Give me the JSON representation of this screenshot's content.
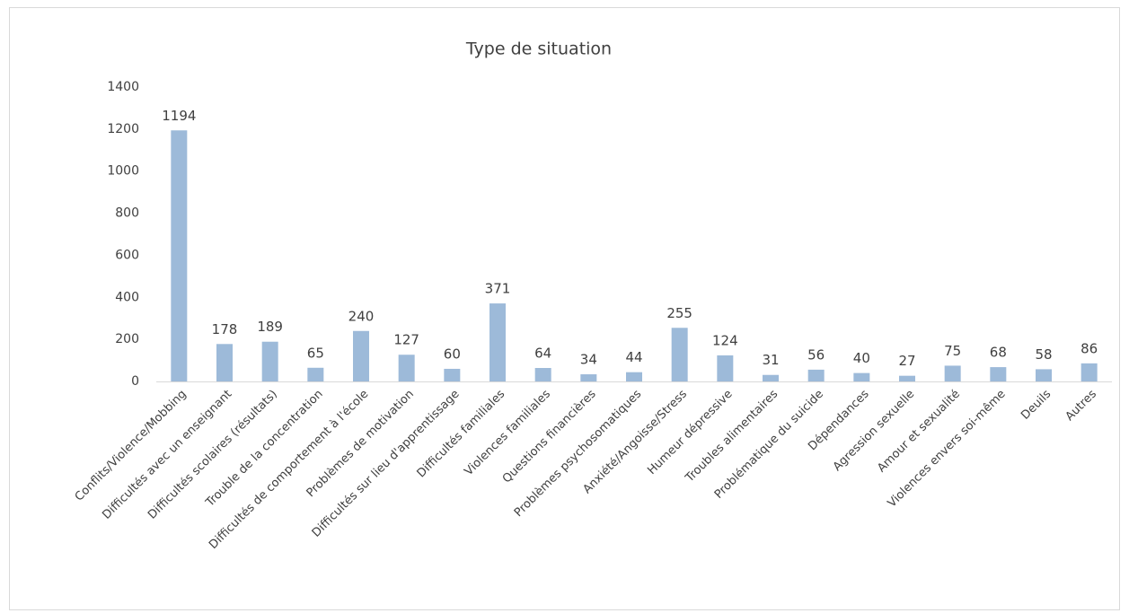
{
  "chart_data": {
    "type": "bar",
    "title": "Type de situation",
    "categories": [
      "Conflits/Violence/Mobbing",
      "Difficultés avec un enseignant",
      "Difficultés scolaires (résultats)",
      "Trouble de la concentration",
      "Difficultés de comportement à l'école",
      "Problèmes de motivation",
      "Difficultés sur lieu d'apprentissage",
      "Difficultés familiales",
      "Violences familiales",
      "Questions financières",
      "Problèmes psychosomatiques",
      "Anxiété/Angoisse/Stress",
      "Humeur dépressive",
      "Troubles alimentaires",
      "Problématique du suicide",
      "Dépendances",
      "Agression sexuelle",
      "Amour et sexualité",
      "Violences envers soi-même",
      "Deuils",
      "Autres"
    ],
    "values": [
      1194,
      178,
      189,
      65,
      240,
      127,
      60,
      371,
      64,
      34,
      44,
      255,
      124,
      31,
      56,
      40,
      27,
      75,
      68,
      58,
      86
    ],
    "color": "#9dbad9",
    "ylim": [
      0,
      1400
    ],
    "yticks": [
      0,
      200,
      400,
      600,
      800,
      1000,
      1200,
      1400
    ],
    "grid": false
  }
}
